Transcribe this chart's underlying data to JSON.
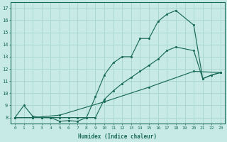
{
  "bg_color": "#c8eae6",
  "line_color": "#1a6b58",
  "grid_color": "#a8d4ce",
  "xlabel": "Humidex (Indice chaleur)",
  "xlim_min": -0.5,
  "xlim_max": 23.5,
  "ylim_min": 7.5,
  "ylim_max": 17.5,
  "yticks": [
    8,
    9,
    10,
    11,
    12,
    13,
    14,
    15,
    16,
    17
  ],
  "xticks": [
    0,
    1,
    2,
    3,
    4,
    5,
    6,
    7,
    8,
    9,
    10,
    11,
    12,
    13,
    14,
    15,
    16,
    17,
    18,
    19,
    20,
    21,
    22,
    23
  ],
  "line1_x": [
    0,
    1,
    2,
    3,
    4,
    5,
    6,
    7,
    8,
    9,
    10,
    11,
    12,
    13,
    14,
    15,
    16,
    17,
    18,
    20,
    21,
    22,
    23
  ],
  "line1_y": [
    8.0,
    9.0,
    8.1,
    8.0,
    8.0,
    7.7,
    7.75,
    7.7,
    8.0,
    9.7,
    11.5,
    12.5,
    13.0,
    13.0,
    14.5,
    14.5,
    15.9,
    16.5,
    16.8,
    15.6,
    11.2,
    11.5,
    11.7
  ],
  "line2_x": [
    0,
    2,
    3,
    4,
    5,
    6,
    7,
    8,
    9,
    10,
    11,
    12,
    13,
    14,
    15,
    16,
    17,
    18,
    20,
    21,
    22,
    23
  ],
  "line2_y": [
    8.0,
    8.0,
    8.0,
    8.0,
    8.0,
    8.0,
    8.0,
    8.0,
    8.0,
    9.5,
    10.2,
    10.8,
    11.3,
    11.8,
    12.3,
    12.8,
    13.5,
    13.8,
    13.5,
    11.2,
    11.5,
    11.7
  ],
  "line3_x": [
    0,
    2,
    5,
    10,
    15,
    20,
    23
  ],
  "line3_y": [
    8.0,
    8.0,
    8.2,
    9.3,
    10.5,
    11.8,
    11.7
  ]
}
